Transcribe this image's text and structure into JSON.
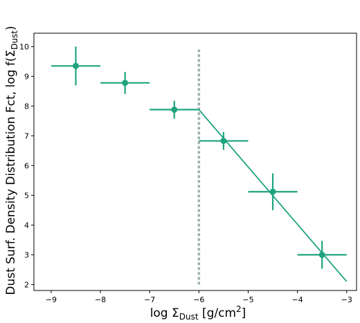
{
  "chart_data": {
    "type": "scatter",
    "xlabel": "log Σ",
    "xlabel_sub": "Dust",
    "xlabel_unit": " [g/cm",
    "xlabel_sup": "2",
    "xlabel_end": "]",
    "ylabel": "Dust Surf. Density Distribution Fct, log f(Σ",
    "ylabel_sub": "Dust",
    "ylabel_end": ")",
    "xlim": [
      -9.35,
      -2.8
    ],
    "ylim": [
      1.8,
      10.45
    ],
    "x_ticks": [
      -9,
      -8,
      -7,
      -6,
      -5,
      -4,
      -3
    ],
    "y_ticks": [
      2,
      3,
      4,
      5,
      6,
      7,
      8,
      9,
      10
    ],
    "x_tick_labels": [
      "−9",
      "−8",
      "−7",
      "−6",
      "−5",
      "−4",
      "−3"
    ],
    "y_tick_labels": [
      "2",
      "3",
      "4",
      "5",
      "6",
      "7",
      "8",
      "9",
      "10"
    ],
    "grid": false,
    "points": [
      {
        "x": -8.5,
        "y": 9.35,
        "xerr": 0.5,
        "yerr": 0.65
      },
      {
        "x": -7.5,
        "y": 8.78,
        "xerr": 0.5,
        "yerr": 0.37
      },
      {
        "x": -6.5,
        "y": 7.88,
        "xerr": 0.5,
        "yerr": 0.3
      },
      {
        "x": -5.5,
        "y": 6.83,
        "xerr": 0.5,
        "yerr": 0.3
      },
      {
        "x": -4.5,
        "y": 5.12,
        "xerr": 0.5,
        "yerr": 0.62
      },
      {
        "x": -3.5,
        "y": 3.0,
        "xerr": 0.5,
        "yerr": 0.47
      }
    ],
    "fit_line": [
      {
        "x": -7.0,
        "y": 7.88
      },
      {
        "x": -6.0,
        "y": 7.88
      },
      {
        "x": -3.0,
        "y": 2.1
      }
    ],
    "vline": {
      "x": -6.0,
      "y0": 2.0,
      "y1": 9.9
    },
    "colors": {
      "series": "#1fa37f",
      "vline": "#9fb0b0"
    }
  }
}
